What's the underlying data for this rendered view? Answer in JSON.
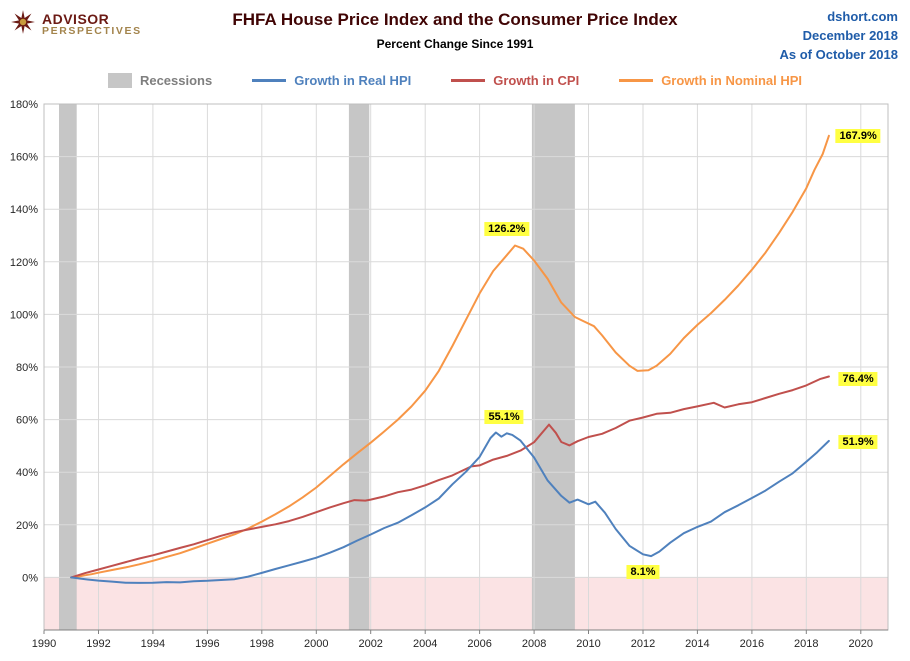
{
  "header": {
    "logo": {
      "line1": "ADVISOR",
      "line2": "PERSPECTIVES"
    },
    "title": "FHFA House Price Index and the Consumer Price Index",
    "subtitle": "Percent Change Since 1991",
    "source": {
      "line1": "dshort.com",
      "line2": "December 2018",
      "line3": "As of October 2018"
    }
  },
  "legend": {
    "items": [
      {
        "label": "Recessions",
        "color": "#C6C6C6",
        "text_color": "#7F7F7F",
        "swatch": "rect"
      },
      {
        "label": "Growth in Real HPI",
        "color": "#4F81BD",
        "text_color": "#4F81BD",
        "swatch": "line"
      },
      {
        "label": "Growth in CPI",
        "color": "#C0504D",
        "text_color": "#C0504D",
        "swatch": "line"
      },
      {
        "label": "Growth in Nominal HPI",
        "color": "#F79646",
        "text_color": "#F79646",
        "swatch": "line"
      }
    ]
  },
  "chart_data": {
    "type": "line",
    "title": "FHFA House Price Index and the Consumer Price Index",
    "subtitle": "Percent Change Since 1991",
    "xlabel": "",
    "ylabel": "",
    "xlim": [
      1990,
      2021
    ],
    "ylim": [
      -20,
      180
    ],
    "grid": true,
    "legend_position": "top",
    "colors": {
      "recession": "#C6C6C6",
      "below_zero_fill": "#FBE3E4",
      "gridline": "#DADADA",
      "plot_border": "#BFBFBF",
      "axis": "#808080",
      "tick_text": "#262626",
      "annotation_bg": "#FFFF42"
    },
    "x_ticks": [
      {
        "value": 1990,
        "label": "1990"
      },
      {
        "value": 1992,
        "label": "1992"
      },
      {
        "value": 1994,
        "label": "1994"
      },
      {
        "value": 1996,
        "label": "1996"
      },
      {
        "value": 1998,
        "label": "1998"
      },
      {
        "value": 2000,
        "label": "2000"
      },
      {
        "value": 2002,
        "label": "2002"
      },
      {
        "value": 2004,
        "label": "2004"
      },
      {
        "value": 2006,
        "label": "2006"
      },
      {
        "value": 2008,
        "label": "2008"
      },
      {
        "value": 2010,
        "label": "2010"
      },
      {
        "value": 2012,
        "label": "2012"
      },
      {
        "value": 2014,
        "label": "2014"
      },
      {
        "value": 2016,
        "label": "2016"
      },
      {
        "value": 2018,
        "label": "2018"
      },
      {
        "value": 2020,
        "label": "2020"
      }
    ],
    "y_ticks": [
      {
        "value": 0,
        "label": "0%"
      },
      {
        "value": 20,
        "label": "20%"
      },
      {
        "value": 40,
        "label": "40%"
      },
      {
        "value": 60,
        "label": "60%"
      },
      {
        "value": 80,
        "label": "80%"
      },
      {
        "value": 100,
        "label": "100%"
      },
      {
        "value": 120,
        "label": "120%"
      },
      {
        "value": 140,
        "label": "140%"
      },
      {
        "value": 160,
        "label": "160%"
      },
      {
        "value": 180,
        "label": "180%"
      }
    ],
    "recessions": [
      {
        "start": 1990.55,
        "end": 1991.2
      },
      {
        "start": 2001.2,
        "end": 2001.95
      },
      {
        "start": 2007.92,
        "end": 2009.5
      }
    ],
    "series": [
      {
        "name": "Growth in Real HPI",
        "color": "#4F81BD",
        "points": [
          [
            1991.0,
            0
          ],
          [
            1991.3,
            -0.4
          ],
          [
            1991.6,
            -0.8
          ],
          [
            1992.0,
            -1.2
          ],
          [
            1992.5,
            -1.6
          ],
          [
            1993.0,
            -2.0
          ],
          [
            1993.5,
            -2.1
          ],
          [
            1994.0,
            -2.0
          ],
          [
            1994.5,
            -1.8
          ],
          [
            1995.0,
            -1.9
          ],
          [
            1995.5,
            -1.5
          ],
          [
            1996.0,
            -1.3
          ],
          [
            1996.5,
            -1.0
          ],
          [
            1997.0,
            -0.7
          ],
          [
            1997.5,
            0.3
          ],
          [
            1998.0,
            1.7
          ],
          [
            1998.5,
            3.2
          ],
          [
            1999.0,
            4.6
          ],
          [
            1999.5,
            6.0
          ],
          [
            2000.0,
            7.5
          ],
          [
            2000.5,
            9.4
          ],
          [
            2001.0,
            11.5
          ],
          [
            2001.5,
            14.0
          ],
          [
            2002.0,
            16.3
          ],
          [
            2002.5,
            18.8
          ],
          [
            2003.0,
            20.8
          ],
          [
            2003.5,
            23.6
          ],
          [
            2004.0,
            26.6
          ],
          [
            2004.5,
            30.0
          ],
          [
            2005.0,
            35.4
          ],
          [
            2005.5,
            40.2
          ],
          [
            2006.0,
            45.8
          ],
          [
            2006.4,
            53.0
          ],
          [
            2006.6,
            55.1
          ],
          [
            2006.8,
            53.5
          ],
          [
            2007.0,
            54.8
          ],
          [
            2007.2,
            54.2
          ],
          [
            2007.5,
            52.0
          ],
          [
            2008.0,
            45.6
          ],
          [
            2008.5,
            36.8
          ],
          [
            2009.0,
            31.0
          ],
          [
            2009.3,
            28.4
          ],
          [
            2009.6,
            29.6
          ],
          [
            2010.0,
            27.8
          ],
          [
            2010.25,
            28.8
          ],
          [
            2010.6,
            24.6
          ],
          [
            2011.0,
            18.4
          ],
          [
            2011.5,
            12.0
          ],
          [
            2012.0,
            8.8
          ],
          [
            2012.3,
            8.1
          ],
          [
            2012.6,
            9.8
          ],
          [
            2013.0,
            13.2
          ],
          [
            2013.5,
            16.8
          ],
          [
            2014.0,
            19.2
          ],
          [
            2014.5,
            21.2
          ],
          [
            2015.0,
            24.8
          ],
          [
            2015.5,
            27.4
          ],
          [
            2016.0,
            30.2
          ],
          [
            2016.5,
            33.0
          ],
          [
            2017.0,
            36.4
          ],
          [
            2017.5,
            39.6
          ],
          [
            2018.0,
            44.0
          ],
          [
            2018.4,
            47.6
          ],
          [
            2018.83,
            51.9
          ]
        ]
      },
      {
        "name": "Growth in CPI",
        "color": "#C0504D",
        "points": [
          [
            1991.0,
            0
          ],
          [
            1991.5,
            1.6
          ],
          [
            1992.0,
            3.0
          ],
          [
            1992.5,
            4.4
          ],
          [
            1993.0,
            5.8
          ],
          [
            1993.5,
            7.2
          ],
          [
            1994.0,
            8.4
          ],
          [
            1994.5,
            9.8
          ],
          [
            1995.0,
            11.2
          ],
          [
            1995.5,
            12.6
          ],
          [
            1996.0,
            14.2
          ],
          [
            1996.5,
            15.8
          ],
          [
            1997.0,
            17.2
          ],
          [
            1997.5,
            18.2
          ],
          [
            1998.0,
            19.2
          ],
          [
            1998.5,
            20.2
          ],
          [
            1999.0,
            21.4
          ],
          [
            1999.5,
            23.0
          ],
          [
            2000.0,
            24.8
          ],
          [
            2000.5,
            26.6
          ],
          [
            2001.0,
            28.2
          ],
          [
            2001.4,
            29.4
          ],
          [
            2001.8,
            29.2
          ],
          [
            2002.0,
            29.6
          ],
          [
            2002.5,
            30.8
          ],
          [
            2003.0,
            32.4
          ],
          [
            2003.5,
            33.4
          ],
          [
            2004.0,
            35.0
          ],
          [
            2004.5,
            37.0
          ],
          [
            2005.0,
            38.8
          ],
          [
            2005.7,
            42.2
          ],
          [
            2006.0,
            42.6
          ],
          [
            2006.5,
            44.8
          ],
          [
            2007.0,
            46.2
          ],
          [
            2007.5,
            48.2
          ],
          [
            2008.0,
            51.4
          ],
          [
            2008.55,
            58.1
          ],
          [
            2008.8,
            55.0
          ],
          [
            2009.0,
            51.5
          ],
          [
            2009.3,
            50.2
          ],
          [
            2009.6,
            51.8
          ],
          [
            2010.0,
            53.4
          ],
          [
            2010.5,
            54.6
          ],
          [
            2011.0,
            56.8
          ],
          [
            2011.5,
            59.6
          ],
          [
            2012.0,
            60.8
          ],
          [
            2012.5,
            62.2
          ],
          [
            2013.0,
            62.6
          ],
          [
            2013.5,
            64.0
          ],
          [
            2014.0,
            65.0
          ],
          [
            2014.6,
            66.4
          ],
          [
            2015.0,
            64.6
          ],
          [
            2015.5,
            65.8
          ],
          [
            2016.0,
            66.6
          ],
          [
            2016.5,
            68.2
          ],
          [
            2017.0,
            69.8
          ],
          [
            2017.5,
            71.2
          ],
          [
            2018.0,
            73.0
          ],
          [
            2018.5,
            75.4
          ],
          [
            2018.83,
            76.4
          ]
        ]
      },
      {
        "name": "Growth in Nominal HPI",
        "color": "#F79646",
        "points": [
          [
            1991.0,
            0
          ],
          [
            1991.25,
            0.3
          ],
          [
            1991.5,
            0.8
          ],
          [
            1991.75,
            1.2
          ],
          [
            1992.0,
            1.8
          ],
          [
            1992.5,
            2.8
          ],
          [
            1993.0,
            3.8
          ],
          [
            1993.5,
            5.0
          ],
          [
            1994.0,
            6.3
          ],
          [
            1994.5,
            7.8
          ],
          [
            1995.0,
            9.2
          ],
          [
            1995.5,
            11.0
          ],
          [
            1996.0,
            12.8
          ],
          [
            1996.5,
            14.6
          ],
          [
            1997.0,
            16.4
          ],
          [
            1997.5,
            18.6
          ],
          [
            1998.0,
            21.2
          ],
          [
            1998.5,
            24.0
          ],
          [
            1999.0,
            27.0
          ],
          [
            1999.5,
            30.4
          ],
          [
            2000.0,
            34.2
          ],
          [
            2000.5,
            38.6
          ],
          [
            2001.0,
            43.0
          ],
          [
            2001.5,
            47.2
          ],
          [
            2002.0,
            51.2
          ],
          [
            2002.5,
            55.5
          ],
          [
            2003.0,
            60.0
          ],
          [
            2003.5,
            65.0
          ],
          [
            2004.0,
            71.0
          ],
          [
            2004.5,
            78.5
          ],
          [
            2005.0,
            88.0
          ],
          [
            2005.5,
            98.0
          ],
          [
            2006.0,
            108.0
          ],
          [
            2006.5,
            116.5
          ],
          [
            2007.0,
            122.5
          ],
          [
            2007.3,
            126.2
          ],
          [
            2007.6,
            125.0
          ],
          [
            2008.0,
            120.5
          ],
          [
            2008.5,
            113.5
          ],
          [
            2009.0,
            104.5
          ],
          [
            2009.5,
            99.0
          ],
          [
            2009.8,
            97.5
          ],
          [
            2010.2,
            95.5
          ],
          [
            2010.5,
            92.0
          ],
          [
            2011.0,
            85.5
          ],
          [
            2011.5,
            80.5
          ],
          [
            2011.8,
            78.5
          ],
          [
            2012.2,
            78.8
          ],
          [
            2012.5,
            80.5
          ],
          [
            2013.0,
            85.0
          ],
          [
            2013.5,
            91.0
          ],
          [
            2014.0,
            96.0
          ],
          [
            2014.5,
            100.5
          ],
          [
            2015.0,
            105.5
          ],
          [
            2015.5,
            111.0
          ],
          [
            2016.0,
            117.0
          ],
          [
            2016.5,
            123.5
          ],
          [
            2017.0,
            131.0
          ],
          [
            2017.5,
            139.0
          ],
          [
            2018.0,
            148.0
          ],
          [
            2018.3,
            155.0
          ],
          [
            2018.6,
            161.0
          ],
          [
            2018.83,
            167.9
          ]
        ]
      }
    ],
    "annotations": [
      {
        "text": "126.2%",
        "x": 2007.0,
        "y": 132.5
      },
      {
        "text": "167.9%",
        "x": 2019.9,
        "y": 167.9
      },
      {
        "text": "55.1%",
        "x": 2006.9,
        "y": 61.0
      },
      {
        "text": "8.1%",
        "x": 2012.0,
        "y": 2.0
      },
      {
        "text": "76.4%",
        "x": 2019.9,
        "y": 75.5
      },
      {
        "text": "51.9%",
        "x": 2019.9,
        "y": 51.5
      }
    ]
  }
}
